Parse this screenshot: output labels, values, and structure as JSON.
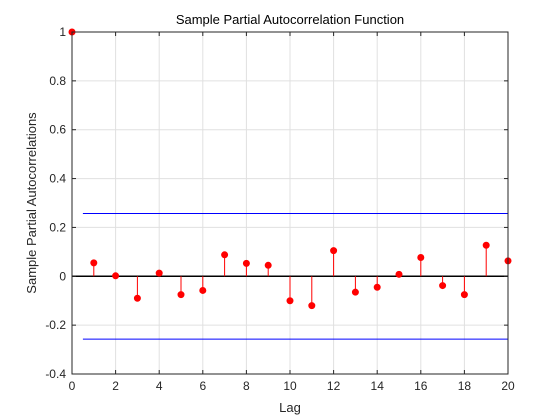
{
  "chart_data": {
    "type": "stem",
    "title": "Sample Partial Autocorrelation Function",
    "xlabel": "Lag",
    "ylabel": "Sample Partial Autocorrelations",
    "xlim": [
      0,
      20
    ],
    "ylim": [
      -0.4,
      1
    ],
    "x_ticks": [
      "0",
      "2",
      "4",
      "6",
      "8",
      "10",
      "12",
      "14",
      "16",
      "18",
      "20"
    ],
    "y_ticks": [
      "-0.4",
      "-0.2",
      "0",
      "0.2",
      "0.4",
      "0.6",
      "0.8",
      "1"
    ],
    "grid": true,
    "x": [
      0,
      1,
      2,
      3,
      4,
      5,
      6,
      7,
      8,
      9,
      10,
      11,
      12,
      13,
      14,
      15,
      16,
      17,
      18,
      19,
      20
    ],
    "values": [
      1.0,
      0.055,
      0.002,
      -0.09,
      0.013,
      -0.075,
      -0.058,
      0.088,
      0.053,
      0.045,
      -0.1,
      -0.12,
      0.105,
      -0.065,
      -0.045,
      0.008,
      0.077,
      -0.038,
      -0.075,
      0.127,
      0.063
    ],
    "confidence_bounds": [
      -0.257,
      0.257
    ],
    "colors": {
      "stem": "#ff0000",
      "bounds": "#0000ff",
      "zero_line": "#000000",
      "grid": "#e0e0e0"
    }
  }
}
